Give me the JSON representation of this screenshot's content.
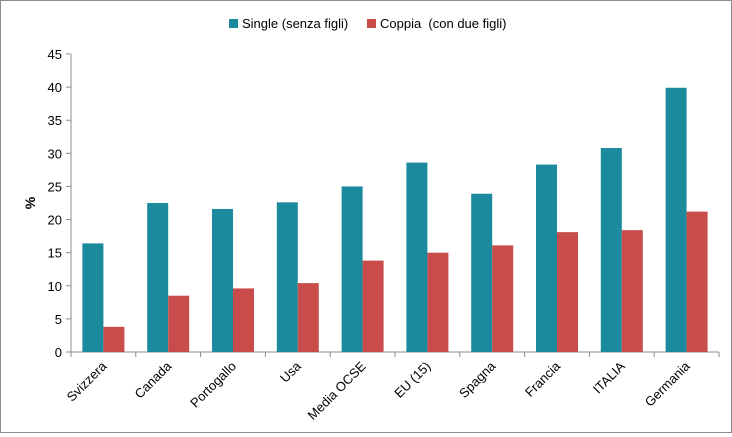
{
  "chart_data": {
    "type": "bar",
    "title": "",
    "xlabel": "",
    "ylabel": "%",
    "ylim": [
      0,
      45
    ],
    "yticks": [
      0,
      5,
      10,
      15,
      20,
      25,
      30,
      35,
      40,
      45
    ],
    "grid": false,
    "legend_position": "top-center",
    "categories": [
      "Svizzera",
      "Canada",
      "Portogallo",
      "Usa",
      "Media OCSE",
      "EU (15)",
      "Spagna",
      "Francia",
      "ITALIA",
      "Germania"
    ],
    "series": [
      {
        "name": "Single (senza figli)",
        "color": "#1a8a9c",
        "values": [
          16.4,
          22.5,
          21.6,
          22.6,
          25.0,
          28.6,
          23.9,
          28.3,
          30.8,
          39.9
        ]
      },
      {
        "name": "Coppia  (con due figli)",
        "color": "#c84c4a",
        "values": [
          3.8,
          8.5,
          9.6,
          10.4,
          13.8,
          15.0,
          16.1,
          18.1,
          18.4,
          21.2
        ]
      }
    ]
  }
}
